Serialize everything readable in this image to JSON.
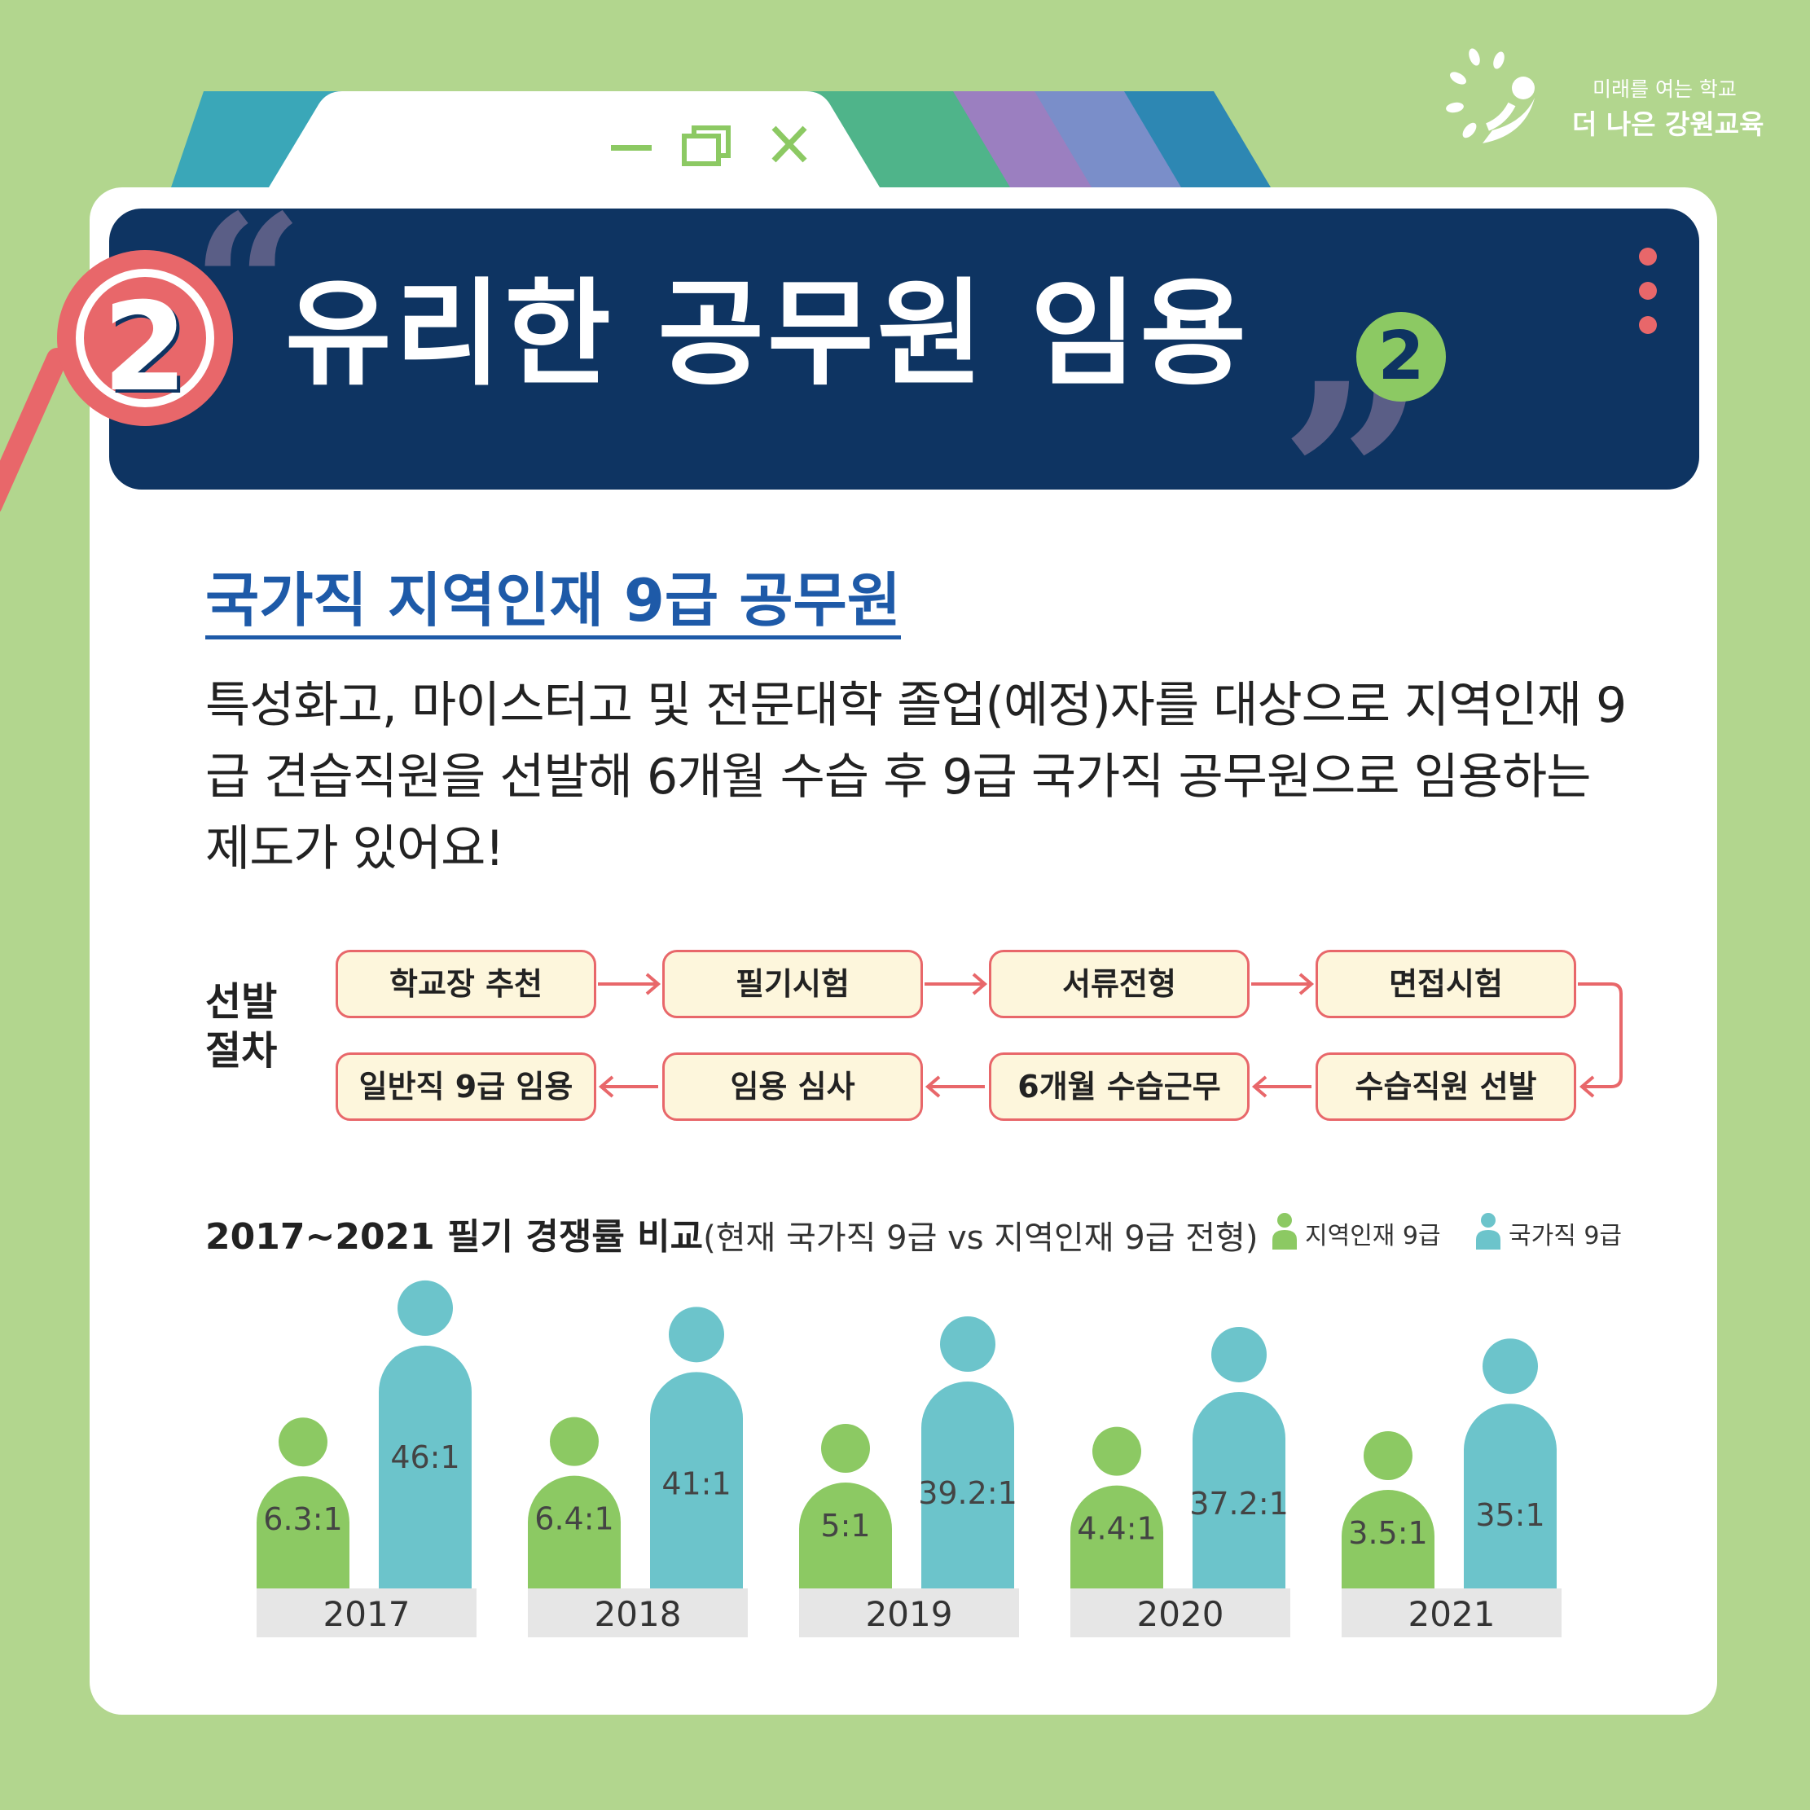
{
  "logo": {
    "sub": "미래를 여는 학교",
    "main": "더 나은 강원교육"
  },
  "banner": {
    "number": "2",
    "title": "유리한 공무원 임용",
    "badge": "2"
  },
  "section": {
    "heading": "국가직 지역인재 9급 공무원",
    "paragraph": "특성화고, 마이스터고 및 전문대학 졸업(예정)자를 대상으로 지역인재 9급 견습직원을 선발해 6개월 수습 후 9급 국가직 공무원으로 임용하는 제도가 있어요!"
  },
  "process": {
    "label": "선발 절차",
    "steps": [
      "학교장 추천",
      "필기시험",
      "서류전형",
      "면접시험",
      "수습직원 선발",
      "6개월 수습근무",
      "임용 심사",
      "일반직 9급 임용"
    ]
  },
  "colors": {
    "background": "#b2d68e",
    "navy": "#0e3462",
    "green": "#8cc963",
    "teal": "#6cc4cb",
    "coral": "#e8676a",
    "heading_blue": "#1e5aa8"
  },
  "chart_data": {
    "type": "bar",
    "title": "2017~2021 필기 경쟁률 비교",
    "subtitle": "(현재 국가직 9급 vs 지역인재 9급 전형)",
    "categories": [
      "2017",
      "2018",
      "2019",
      "2020",
      "2021"
    ],
    "series": [
      {
        "name": "지역인재 9급",
        "color": "#8cc963",
        "values": [
          6.3,
          6.4,
          5,
          4.4,
          3.5
        ],
        "labels": [
          "6.3:1",
          "6.4:1",
          "5:1",
          "4.4:1",
          "3.5:1"
        ]
      },
      {
        "name": "국가직 9급",
        "color": "#6cc4cb",
        "values": [
          46,
          41,
          39.2,
          37.2,
          35
        ],
        "labels": [
          "46:1",
          "41:1",
          "39.2:1",
          "37.2:1",
          "35:1"
        ]
      }
    ],
    "legend": "top-right",
    "mark": "person-icon"
  }
}
